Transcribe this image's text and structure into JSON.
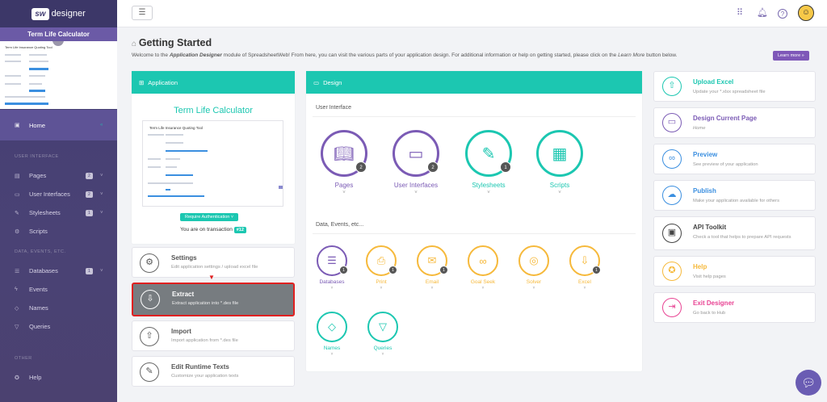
{
  "brand": {
    "sw": "sw",
    "name": "designer"
  },
  "sidebar": {
    "app_title": "Term Life Calculator",
    "thumb_title": "Term Life Insurance Quoting Tool",
    "home": "Home",
    "sec_ui": "USER INTERFACE",
    "pages": "Pages",
    "pages_badge": "2",
    "uis": "User Interfaces",
    "uis_badge": "2",
    "styles": "Stylesheets",
    "styles_badge": "1",
    "scripts": "Scripts",
    "sec_data": "DATA, EVENTS, ETC.",
    "databases": "Databases",
    "databases_badge": "1",
    "events": "Events",
    "names": "Names",
    "queries": "Queries",
    "sec_other": "OTHER",
    "help": "Help"
  },
  "header": {
    "title": "Getting Started",
    "subtitle_pre": "Welcome to the ",
    "subtitle_em": "Application Designer",
    "subtitle_mid": " module of SpreadsheetWeb! From here, you can visit the various parts of your application design. For additional information or help on getting started, please click on the ",
    "subtitle_em2": "Learn More",
    "subtitle_post": " button below.",
    "learn_more": "Learn more »"
  },
  "application": {
    "title": "Application",
    "calc_title": "Term Life Calculator",
    "req_auth": "Require Authentication ˅",
    "transaction_label": "You are on transaction",
    "transaction_no": "#12"
  },
  "left_cards": [
    {
      "title": "Settings",
      "sub": "Edit application settings / upload excel file"
    },
    {
      "title": "Extract",
      "sub": "Extract application into *.des file"
    },
    {
      "title": "Import",
      "sub": "Import application from *.des file"
    },
    {
      "title": "Edit Runtime Texts",
      "sub": "Customize your application texts"
    }
  ],
  "design": {
    "title": "Design",
    "ui_section": "User Interface",
    "data_section": "Data, Events, etc...",
    "big": [
      {
        "label": "Pages",
        "count": "2"
      },
      {
        "label": "User Interfaces",
        "count": "2"
      },
      {
        "label": "Stylesheets",
        "count": "1"
      },
      {
        "label": "Scripts",
        "count": ""
      }
    ],
    "small": [
      {
        "label": "Databases",
        "count": "1"
      },
      {
        "label": "Print",
        "count": "1"
      },
      {
        "label": "Email",
        "count": "1"
      },
      {
        "label": "Goal Seek",
        "count": ""
      },
      {
        "label": "Solver",
        "count": ""
      },
      {
        "label": "Excel",
        "count": "1"
      },
      {
        "label": "Names",
        "count": ""
      },
      {
        "label": "Queries",
        "count": ""
      }
    ]
  },
  "right_cards": [
    {
      "title": "Upload Excel",
      "sub": "Update your *.xlsx spreadsheet file",
      "color": "#1cc7b1"
    },
    {
      "title": "Design Current Page",
      "sub": "Home",
      "color": "#7b5bb5"
    },
    {
      "title": "Preview",
      "sub": "See preview of your application",
      "color": "#3b8fe0"
    },
    {
      "title": "Publish",
      "sub": "Make your application available for others",
      "color": "#3b8fe0"
    },
    {
      "title": "API Toolkit",
      "sub": "Check a tool that helps to prepare API requests",
      "color": "#444"
    },
    {
      "title": "Help",
      "sub": "Visit help pages",
      "color": "#f6b93b"
    },
    {
      "title": "Exit Designer",
      "sub": "Go back to Hub",
      "color": "#e84393"
    }
  ],
  "colors": {
    "teal": "#1cc7b1",
    "purple": "#7b5bb5",
    "orange": "#f6b93b",
    "blue": "#3b8fe0"
  }
}
